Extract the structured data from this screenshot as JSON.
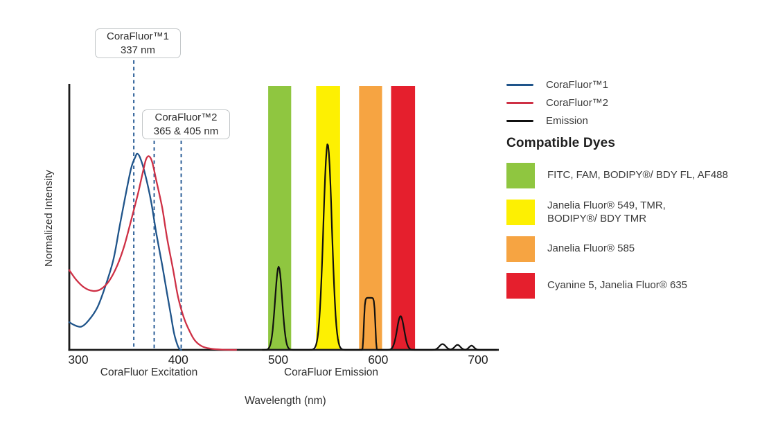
{
  "chart_data": {
    "type": "line",
    "title": "",
    "xlabel": "Wavelength (nm)",
    "ylabel": "Normalized Intensity",
    "x_ticks": [
      300,
      400,
      500,
      600,
      700
    ],
    "x_axis_range_nm": [
      291,
      721
    ],
    "y_axis_range": [
      0,
      1
    ],
    "grid": "off",
    "legend_position": "right",
    "axis_color": "#1c1c1c",
    "tick_label_color": "#222222",
    "annotation_line_color": "#3e6ca0",
    "x_axis_sections": [
      {
        "label": "CoraFluor Excitation"
      },
      {
        "label": "CoraFluor Emission"
      }
    ],
    "annotations": [
      {
        "title": "CoraFluor™1",
        "value": "337 nm",
        "dashed_lines_nm": [
          355.5
        ]
      },
      {
        "title": "CoraFluor™2",
        "value": "365 & 405 nm",
        "dashed_lines_nm": [
          376,
          403
        ]
      }
    ],
    "series": [
      {
        "name": "CoraFluor™1",
        "kind": "excitation",
        "color": "#1f548a",
        "points": [
          [
            291,
            0.105
          ],
          [
            296,
            0.094
          ],
          [
            303,
            0.088
          ],
          [
            310,
            0.11
          ],
          [
            319,
            0.16
          ],
          [
            327,
            0.24
          ],
          [
            335,
            0.34
          ],
          [
            341,
            0.46
          ],
          [
            347,
            0.58
          ],
          [
            353,
            0.69
          ],
          [
            357,
            0.73
          ],
          [
            359,
            0.743
          ],
          [
            362,
            0.727
          ],
          [
            367,
            0.664
          ],
          [
            373,
            0.559
          ],
          [
            378,
            0.443
          ],
          [
            384,
            0.32
          ],
          [
            389,
            0.21
          ],
          [
            393,
            0.123
          ],
          [
            396,
            0.06
          ],
          [
            399,
            0.021
          ],
          [
            401,
            0.005
          ],
          [
            403,
            0.0
          ]
        ]
      },
      {
        "name": "CoraFluor™2",
        "kind": "excitation",
        "color": "#ce3045",
        "points": [
          [
            291,
            0.302
          ],
          [
            298,
            0.265
          ],
          [
            306,
            0.236
          ],
          [
            315,
            0.223
          ],
          [
            323,
            0.231
          ],
          [
            331,
            0.262
          ],
          [
            339,
            0.32
          ],
          [
            346,
            0.394
          ],
          [
            353,
            0.493
          ],
          [
            360,
            0.596
          ],
          [
            365,
            0.68
          ],
          [
            368,
            0.724
          ],
          [
            371,
            0.733
          ],
          [
            374,
            0.711
          ],
          [
            378,
            0.643
          ],
          [
            384,
            0.538
          ],
          [
            389,
            0.42
          ],
          [
            395,
            0.302
          ],
          [
            400,
            0.197
          ],
          [
            406,
            0.118
          ],
          [
            412,
            0.066
          ],
          [
            417,
            0.034
          ],
          [
            424,
            0.013
          ],
          [
            432,
            0.005
          ],
          [
            444,
            0.001
          ],
          [
            458,
            0.0
          ]
        ]
      },
      {
        "name": "Emission",
        "kind": "emission",
        "color": "#101010",
        "sample_range_nm": [
          484,
          719
        ],
        "peaks": [
          {
            "center": 500.5,
            "height": 0.315,
            "width": 5.0,
            "exponent": 2
          },
          {
            "center": 549.5,
            "height": 0.78,
            "width": 6.0,
            "exponent": 2
          },
          {
            "center": 591.5,
            "height": 0.197,
            "width": 6.0,
            "exponent": 8
          },
          {
            "center": 622.5,
            "height": 0.128,
            "width": 5.0,
            "exponent": 2
          },
          {
            "center": 664.5,
            "height": 0.022,
            "width": 4.5,
            "exponent": 2
          },
          {
            "center": 679.5,
            "height": 0.019,
            "width": 4.0,
            "exponent": 2
          },
          {
            "center": 693.5,
            "height": 0.016,
            "width": 3.5,
            "exponent": 2
          }
        ]
      }
    ],
    "filter_bands": [
      {
        "nm_start": 490,
        "nm_end": 513,
        "color": "#8fc640"
      },
      {
        "nm_start": 538,
        "nm_end": 562,
        "color": "#fdf002"
      },
      {
        "nm_start": 581,
        "nm_end": 604,
        "color": "#f6a442"
      },
      {
        "nm_start": 613,
        "nm_end": 637,
        "color": "#e51f2d"
      }
    ]
  },
  "legend": {
    "items": [
      {
        "label": "CoraFluor™1",
        "color": "#1f548a"
      },
      {
        "label": "CoraFluor™2",
        "color": "#ce3045"
      },
      {
        "label": "Emission",
        "color": "#101010"
      }
    ]
  },
  "compatible_dyes": {
    "heading": "Compatible Dyes",
    "items": [
      {
        "color": "#8fc640",
        "label": "FITC, FAM, BODIPY®/ BDY FL, AF488"
      },
      {
        "color": "#fdf002",
        "label": "Janelia Fluor® 549, TMR,\nBODIPY®/ BDY TMR"
      },
      {
        "color": "#f6a442",
        "label": "Janelia Fluor® 585"
      },
      {
        "color": "#e51f2d",
        "label": "Cyanine 5, Janelia Fluor® 635"
      }
    ]
  }
}
